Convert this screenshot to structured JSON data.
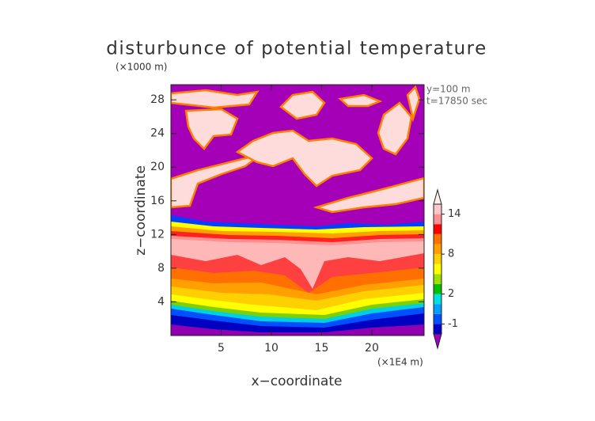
{
  "chart_data": {
    "type": "contour",
    "title": "disturbunce of potential temperature",
    "y_unit": "(×1000 m)",
    "x_unit": "(×1E4 m)",
    "annotations": [
      "y=100 m",
      "t=17850 sec"
    ],
    "xlabel": "x−coordinate",
    "ylabel": "z−coordinate",
    "xlim": [
      0,
      25.2
    ],
    "xticks": [
      5,
      10,
      15,
      20
    ],
    "ylim": [
      0,
      29.8
    ],
    "yticks": [
      4,
      8,
      12,
      16,
      20,
      24,
      28
    ],
    "colorbar": {
      "levels": [
        -2,
        -1,
        0,
        1,
        2,
        4,
        6,
        7,
        8,
        10,
        11,
        12,
        14,
        16
      ],
      "colors": [
        "#0000c8",
        "#0050ff",
        "#00a0ff",
        "#00e0e0",
        "#00c000",
        "#a0e000",
        "#ffff00",
        "#ffd000",
        "#ffa000",
        "#ff7000",
        "#ff0000",
        "#ff9090",
        "#ffc8c8"
      ],
      "under_color": "#a000c0",
      "over_color": "#fff0f0",
      "ticks": [
        -1,
        2,
        8,
        14
      ]
    }
  }
}
